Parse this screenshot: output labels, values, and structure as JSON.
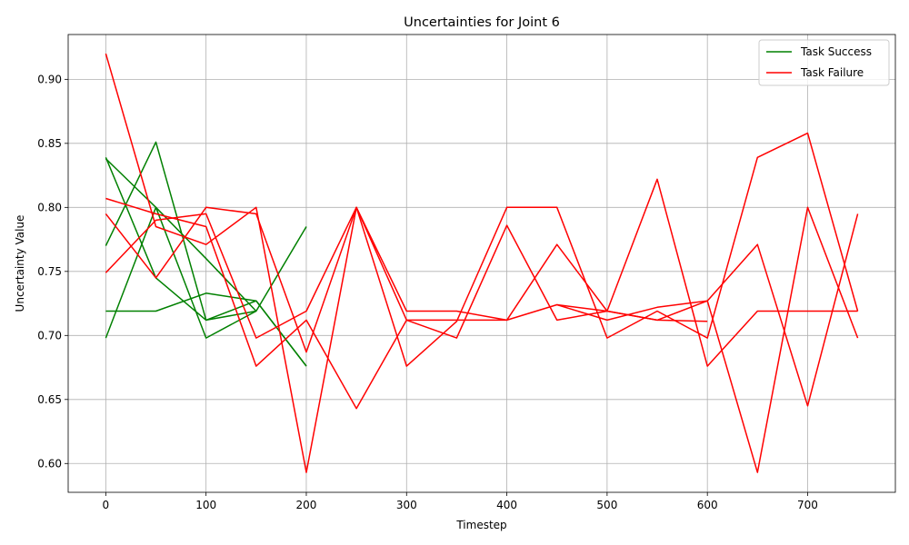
{
  "chart_data": {
    "type": "line",
    "title": "Uncertainties for Joint 6",
    "xlabel": "Timestep",
    "ylabel": "Uncertainty Value",
    "xlim": [
      -37.5,
      787.5
    ],
    "ylim": [
      0.5775,
      0.935
    ],
    "x_ticks": [
      0,
      100,
      200,
      300,
      400,
      500,
      600,
      700
    ],
    "y_ticks": [
      0.6,
      0.65,
      0.7,
      0.75,
      0.8,
      0.85,
      0.9
    ],
    "x_tick_labels": [
      "0",
      "100",
      "200",
      "300",
      "400",
      "500",
      "600",
      "700"
    ],
    "y_tick_labels": [
      "0.60",
      "0.65",
      "0.70",
      "0.75",
      "0.80",
      "0.85",
      "0.90"
    ],
    "grid": true,
    "legend_position": "top-right",
    "legend": [
      {
        "label": "Task Success",
        "color": "#008000"
      },
      {
        "label": "Task Failure",
        "color": "#ff0000"
      }
    ],
    "series": [
      {
        "group": "Task Success",
        "color": "#008000",
        "x": [
          0,
          50,
          100,
          150
        ],
        "values": [
          0.838,
          0.8,
          0.76,
          0.719
        ]
      },
      {
        "group": "Task Success",
        "color": "#008000",
        "x": [
          0,
          50,
          100,
          150,
          200
        ],
        "values": [
          0.77,
          0.851,
          0.712,
          0.727,
          0.676
        ]
      },
      {
        "group": "Task Success",
        "color": "#008000",
        "x": [
          0,
          50,
          100,
          150,
          200
        ],
        "values": [
          0.719,
          0.719,
          0.733,
          0.727,
          0.676
        ]
      },
      {
        "group": "Task Success",
        "color": "#008000",
        "x": [
          0,
          50,
          100,
          150
        ],
        "values": [
          0.698,
          0.8,
          0.698,
          0.719
        ]
      },
      {
        "group": "Task Success",
        "color": "#008000",
        "x": [
          0,
          50,
          100,
          150,
          200
        ],
        "values": [
          0.839,
          0.745,
          0.712,
          0.719,
          0.785
        ]
      },
      {
        "group": "Task Failure",
        "color": "#ff0000",
        "x": [
          0,
          50,
          100,
          150,
          200,
          250,
          300,
          350,
          400,
          450,
          500,
          550,
          600,
          650,
          700,
          750
        ],
        "values": [
          0.92,
          0.785,
          0.771,
          0.8,
          0.593,
          0.8,
          0.712,
          0.712,
          0.712,
          0.724,
          0.712,
          0.722,
          0.727,
          0.593,
          0.8,
          0.698
        ]
      },
      {
        "group": "Task Failure",
        "color": "#ff0000",
        "x": [
          0,
          50,
          100,
          150,
          200,
          250,
          300,
          350,
          400,
          450,
          500,
          550,
          600,
          650,
          700,
          750
        ],
        "values": [
          0.807,
          0.795,
          0.785,
          0.676,
          0.712,
          0.643,
          0.712,
          0.698,
          0.786,
          0.712,
          0.719,
          0.712,
          0.727,
          0.771,
          0.645,
          0.795
        ]
      },
      {
        "group": "Task Failure",
        "color": "#ff0000",
        "x": [
          0,
          50,
          100,
          150,
          200,
          250,
          300,
          350,
          400,
          450,
          500,
          550,
          600,
          650,
          700,
          750
        ],
        "values": [
          0.795,
          0.745,
          0.8,
          0.795,
          0.687,
          0.8,
          0.676,
          0.711,
          0.8,
          0.8,
          0.698,
          0.719,
          0.698,
          0.839,
          0.858,
          0.719
        ]
      },
      {
        "group": "Task Failure",
        "color": "#ff0000",
        "x": [
          0,
          50,
          100,
          150,
          200,
          250,
          300,
          350,
          400,
          450,
          500,
          550,
          600,
          650,
          700,
          750
        ],
        "values": [
          0.749,
          0.79,
          0.795,
          0.698,
          0.719,
          0.8,
          0.719,
          0.719,
          0.712,
          0.771,
          0.719,
          0.822,
          0.676,
          0.719,
          0.719,
          0.719
        ]
      },
      {
        "group": "Task Failure",
        "color": "#ff0000",
        "x": [
          450,
          500,
          550,
          600
        ],
        "values": [
          0.724,
          0.719,
          0.712,
          0.711
        ]
      }
    ]
  }
}
